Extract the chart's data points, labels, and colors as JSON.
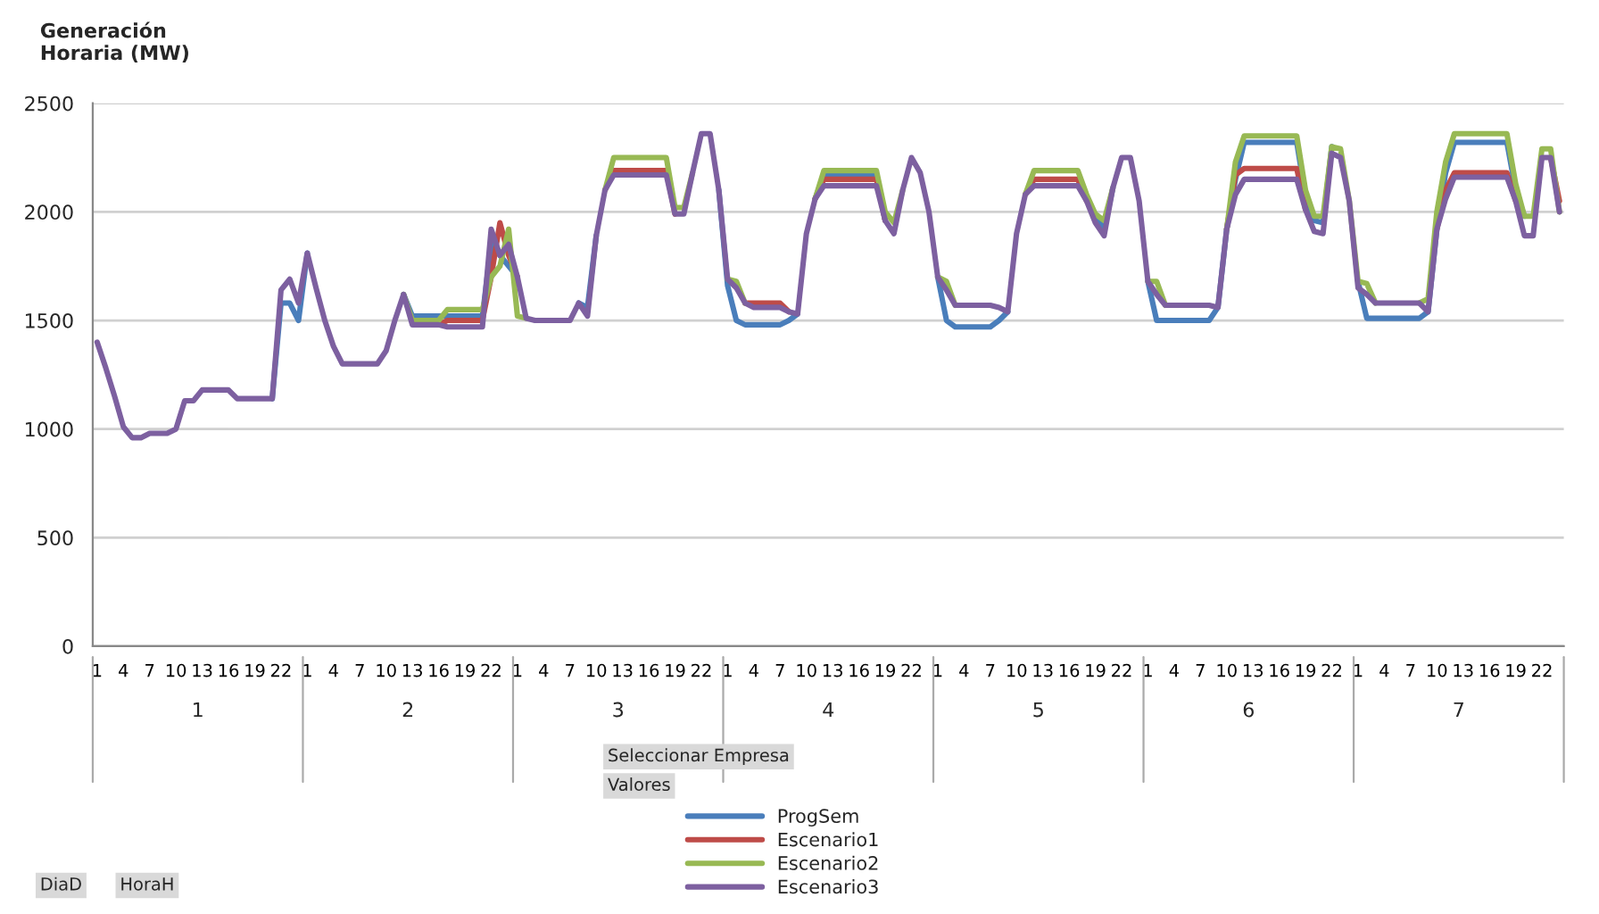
{
  "chart_data": {
    "type": "line",
    "ylabel": "Generación\nHoraria (MW)",
    "categories": [
      "1",
      null,
      null,
      "4",
      null,
      null,
      "7",
      null,
      null,
      "10",
      null,
      null,
      "13",
      null,
      null,
      "16",
      null,
      null,
      "19",
      null,
      null,
      "22",
      null,
      null,
      "1",
      null,
      null,
      "4",
      null,
      null,
      "7",
      null,
      null,
      "10",
      null,
      null,
      "13",
      null,
      null,
      "16",
      null,
      null,
      "19",
      null,
      null,
      "22",
      null,
      null,
      "1",
      null,
      null,
      "4",
      null,
      null,
      "7",
      null,
      null,
      "10",
      null,
      null,
      "13",
      null,
      null,
      "16",
      null,
      null,
      "19",
      null,
      null,
      "22",
      null,
      null,
      "1",
      null,
      null,
      "4",
      null,
      null,
      "7",
      null,
      null,
      "10",
      null,
      null,
      "13",
      null,
      null,
      "16",
      null,
      null,
      "19",
      null,
      null,
      "22",
      null,
      null,
      "1",
      null,
      null,
      "4",
      null,
      null,
      "7",
      null,
      null,
      "10",
      null,
      null,
      "13",
      null,
      null,
      "16",
      null,
      null,
      "19",
      null,
      null,
      "22",
      null,
      null,
      "1",
      null,
      null,
      "4",
      null,
      null,
      "7",
      null,
      null,
      "10",
      null,
      null,
      "13",
      null,
      null,
      "16",
      null,
      null,
      "19",
      null,
      null,
      "22",
      null,
      null,
      "1",
      null,
      null,
      "4",
      null,
      null,
      "7",
      null,
      null,
      "10",
      null,
      null,
      "13",
      null,
      null,
      "16",
      null,
      null,
      "19",
      null,
      null,
      "22",
      null,
      null
    ],
    "series": [
      {
        "name": "ProgSem",
        "color": "#4a7ebb",
        "values": [
          null,
          null,
          null,
          null,
          null,
          null,
          null,
          null,
          null,
          null,
          null,
          null,
          null,
          null,
          null,
          null,
          null,
          null,
          null,
          null,
          1140,
          1580,
          1580,
          1500,
          1810,
          null,
          null,
          null,
          null,
          null,
          null,
          null,
          null,
          null,
          null,
          1620,
          1520,
          1520,
          1520,
          1520,
          1520,
          1520,
          1520,
          1520,
          1520,
          1850,
          1800,
          1750,
          1700,
          null,
          null,
          null,
          null,
          null,
          null,
          1580,
          1560,
          1890,
          null,
          null,
          null,
          null,
          null,
          null,
          null,
          null,
          null,
          null,
          null,
          null,
          null,
          2100,
          1660,
          1500,
          1480,
          1480,
          1480,
          1480,
          1480,
          1500,
          1530,
          null,
          2060,
          2170,
          2170,
          2170,
          2170,
          2170,
          2170,
          2170,
          1960,
          null,
          null,
          null,
          null,
          null,
          1700,
          1500,
          1470,
          1470,
          1470,
          1470,
          1470,
          1500,
          1540,
          null,
          null,
          null,
          null,
          null,
          null,
          null,
          null,
          null,
          1990,
          1920,
          2110,
          null,
          null,
          null,
          1680,
          1500,
          1500,
          1500,
          1500,
          1500,
          1500,
          1500,
          1560,
          1920,
          2150,
          2320,
          2320,
          2320,
          2320,
          2320,
          2320,
          2320,
          2070,
          1960,
          1950,
          2300,
          null,
          null,
          1680,
          1510,
          1510,
          1510,
          1510,
          1510,
          1510,
          1510,
          1540,
          1920,
          2180,
          2320,
          2320,
          2320,
          2320,
          2320,
          2320,
          2320,
          2100,
          1980,
          null,
          null,
          null,
          null
        ]
      },
      {
        "name": "Escenario1",
        "color": "#be4b48",
        "values": [
          null,
          null,
          null,
          null,
          null,
          null,
          null,
          null,
          null,
          null,
          null,
          null,
          null,
          null,
          null,
          null,
          null,
          null,
          null,
          null,
          null,
          null,
          null,
          null,
          null,
          null,
          null,
          null,
          null,
          null,
          null,
          null,
          null,
          null,
          null,
          null,
          null,
          null,
          null,
          1480,
          1500,
          1500,
          1500,
          1500,
          1500,
          1700,
          1950,
          1800,
          1700,
          null,
          null,
          null,
          null,
          null,
          null,
          null,
          null,
          null,
          2100,
          2190,
          2190,
          2190,
          2190,
          2190,
          2190,
          2190,
          1990,
          null,
          null,
          null,
          null,
          null,
          null,
          null,
          1580,
          1580,
          1580,
          1580,
          1580,
          1540,
          null,
          null,
          2060,
          2150,
          2150,
          2150,
          2150,
          2150,
          2150,
          2150,
          1960,
          null,
          null,
          null,
          null,
          null,
          null,
          null,
          null,
          null,
          null,
          null,
          null,
          null,
          null,
          null,
          2080,
          2150,
          2150,
          2150,
          2150,
          2150,
          2150,
          2050,
          null,
          null,
          null,
          null,
          null,
          null,
          null,
          null,
          null,
          null,
          null,
          null,
          null,
          null,
          null,
          1920,
          2170,
          2200,
          2200,
          2200,
          2200,
          2200,
          2200,
          2200,
          2010,
          null,
          null,
          null,
          null,
          null,
          null,
          null,
          null,
          null,
          null,
          null,
          null,
          null,
          null,
          1920,
          2100,
          2180,
          2180,
          2180,
          2180,
          2180,
          2180,
          2180,
          2050,
          null,
          null,
          null,
          2250,
          2050
        ]
      },
      {
        "name": "Escenario2",
        "color": "#98b954",
        "values": [
          null,
          null,
          null,
          null,
          null,
          null,
          null,
          null,
          null,
          null,
          null,
          null,
          null,
          null,
          null,
          null,
          null,
          null,
          null,
          null,
          null,
          null,
          null,
          null,
          null,
          null,
          null,
          null,
          null,
          null,
          null,
          null,
          null,
          null,
          null,
          1620,
          1500,
          1500,
          1500,
          1500,
          1550,
          1550,
          1550,
          1550,
          1550,
          1700,
          1750,
          1920,
          1520,
          1510,
          null,
          null,
          null,
          null,
          null,
          null,
          null,
          null,
          2100,
          2250,
          2250,
          2250,
          2250,
          2250,
          2250,
          2250,
          2020,
          2020,
          2180,
          null,
          null,
          null,
          1690,
          1680,
          1580,
          null,
          null,
          null,
          null,
          null,
          null,
          null,
          2060,
          2190,
          2190,
          2190,
          2190,
          2190,
          2190,
          2190,
          2000,
          1950,
          2100,
          null,
          null,
          null,
          1700,
          1680,
          1570,
          null,
          null,
          null,
          null,
          null,
          null,
          null,
          2080,
          2190,
          2190,
          2190,
          2190,
          2190,
          2190,
          2080,
          1990,
          1960,
          2110,
          null,
          null,
          null,
          1680,
          1680,
          1570,
          null,
          null,
          null,
          null,
          null,
          null,
          1920,
          2230,
          2350,
          2350,
          2350,
          2350,
          2350,
          2350,
          2350,
          2100,
          1980,
          1980,
          2300,
          2290,
          2050,
          1680,
          1670,
          1580,
          null,
          null,
          null,
          null,
          1580,
          1600,
          2000,
          2230,
          2360,
          2360,
          2360,
          2360,
          2360,
          2360,
          2360,
          2130,
          1980,
          1980,
          2290,
          2290,
          2000
        ]
      },
      {
        "name": "Escenario3",
        "color": "#7d60a0",
        "values": [
          1400,
          1280,
          1150,
          1010,
          960,
          960,
          980,
          980,
          980,
          1000,
          1130,
          1130,
          1180,
          1180,
          1180,
          1180,
          1140,
          1140,
          1140,
          1140,
          1140,
          1640,
          1690,
          1580,
          1810,
          1650,
          1500,
          1380,
          1300,
          1300,
          1300,
          1300,
          1300,
          1360,
          1500,
          1620,
          1480,
          1480,
          1480,
          1480,
          1470,
          1470,
          1470,
          1470,
          1470,
          1920,
          1800,
          1850,
          1700,
          1510,
          1500,
          1500,
          1500,
          1500,
          1500,
          1580,
          1520,
          1890,
          2100,
          2170,
          2170,
          2170,
          2170,
          2170,
          2170,
          2170,
          1990,
          1990,
          2180,
          2360,
          2360,
          2100,
          1690,
          1650,
          1580,
          1560,
          1560,
          1560,
          1560,
          1540,
          1530,
          1900,
          2060,
          2120,
          2120,
          2120,
          2120,
          2120,
          2120,
          2120,
          1960,
          1900,
          2100,
          2250,
          2180,
          2000,
          1700,
          1640,
          1570,
          1570,
          1570,
          1570,
          1570,
          1560,
          1540,
          1900,
          2080,
          2120,
          2120,
          2120,
          2120,
          2120,
          2120,
          2050,
          1950,
          1890,
          2110,
          2250,
          2250,
          2050,
          1680,
          1620,
          1570,
          1570,
          1570,
          1570,
          1570,
          1570,
          1560,
          1920,
          2080,
          2150,
          2150,
          2150,
          2150,
          2150,
          2150,
          2150,
          2010,
          1910,
          1900,
          2270,
          2250,
          2050,
          1650,
          1620,
          1580,
          1580,
          1580,
          1580,
          1580,
          1580,
          1540,
          1920,
          2060,
          2160,
          2160,
          2160,
          2160,
          2160,
          2160,
          2160,
          2050,
          1890,
          1890,
          2250,
          2250,
          2000
        ]
      }
    ],
    "ylim": [
      0,
      2500
    ],
    "yticks": [
      0,
      500,
      1000,
      1500,
      2000,
      2500
    ],
    "grid": "y",
    "legend": "bottom",
    "marker": "none",
    "line_style": "solid",
    "annotations": [
      "1",
      "2",
      "3",
      "4",
      "5",
      "6",
      "7",
      "Seleccionar Empresa",
      "Valores",
      "DiaD",
      "HoraH"
    ]
  }
}
